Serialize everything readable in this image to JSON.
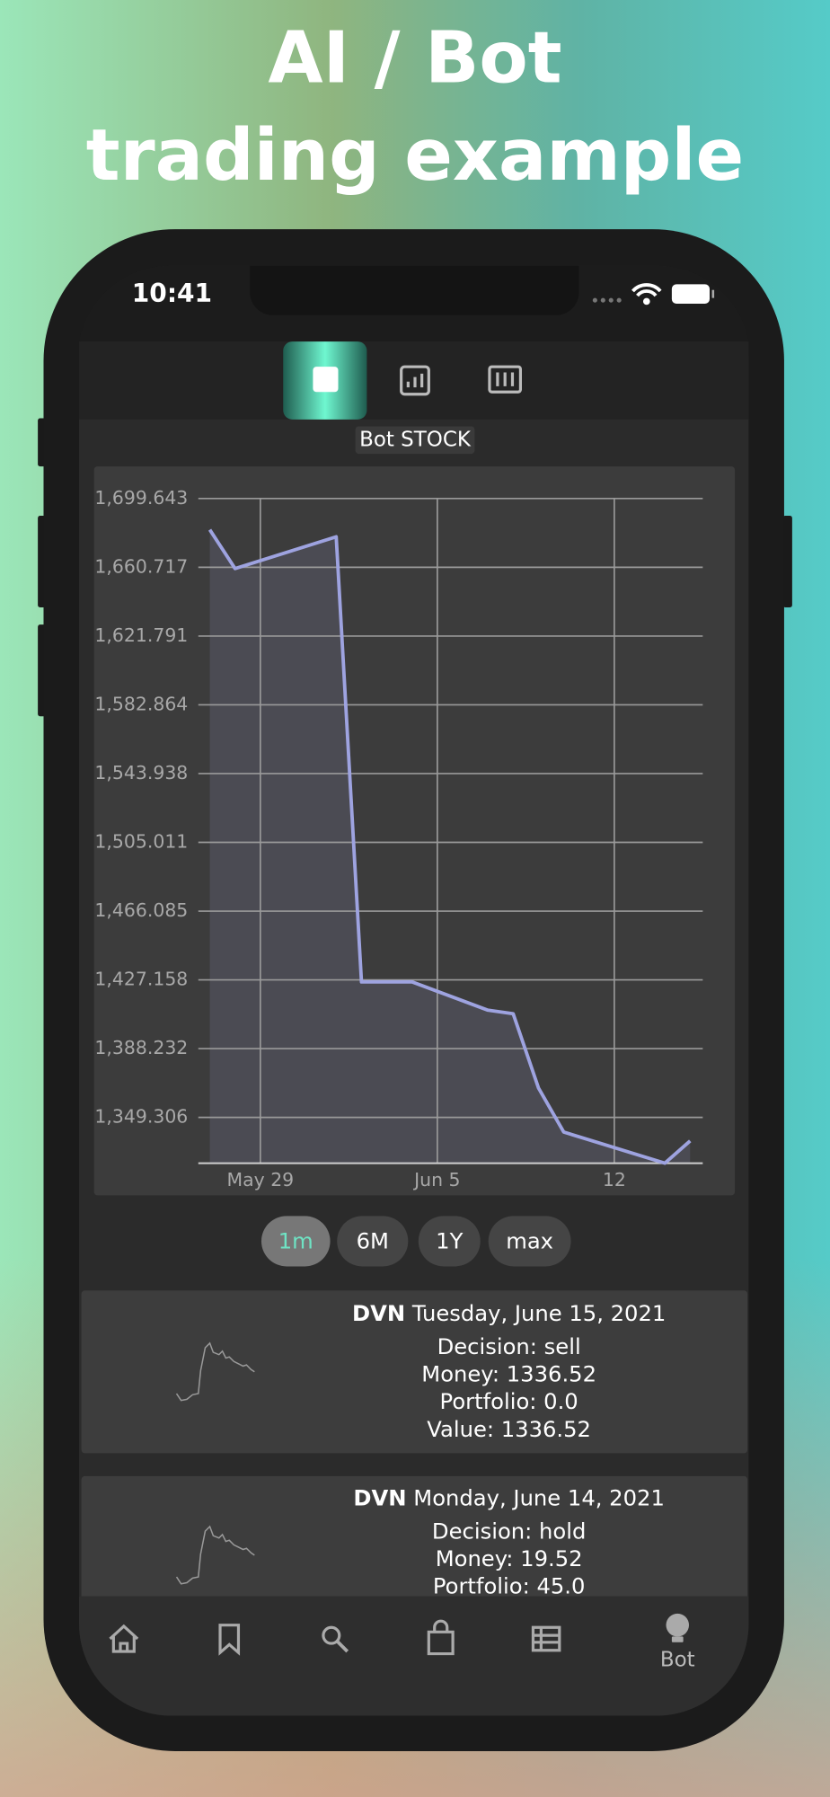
{
  "header": {
    "title_line1": "AI / Bot",
    "title_line2": "trading example"
  },
  "status_bar": {
    "time": "10:41"
  },
  "chart_data": {
    "type": "line",
    "title": "Bot STOCK",
    "x": [
      "May 27",
      "May 28",
      "Jun 1",
      "Jun 2",
      "Jun 4",
      "Jun 7",
      "Jun 8",
      "Jun 9",
      "Jun 10",
      "Jun 14",
      "Jun 15"
    ],
    "values": [
      1682,
      1660,
      1678,
      1426,
      1426,
      1410,
      1408,
      1366,
      1341,
      1323.4,
      1336
    ],
    "color": "#9ea3e0",
    "xlim": [
      "May 27",
      "Jun 15"
    ],
    "xticks": [
      {
        "value": "May 29",
        "label": "May 29"
      },
      {
        "value": "Jun 5",
        "label": "Jun 5"
      },
      {
        "value": "Jun 12",
        "label": "12"
      }
    ],
    "ylim": [
      1323.35,
      1699.643
    ],
    "yticks": [
      {
        "value": 1699.643,
        "label": "1,699.643"
      },
      {
        "value": 1660.717,
        "label": "1,660.717"
      },
      {
        "value": 1621.791,
        "label": "1,621.791"
      },
      {
        "value": 1582.864,
        "label": "1,582.864"
      },
      {
        "value": 1543.938,
        "label": "1,543.938"
      },
      {
        "value": 1505.011,
        "label": "1,505.011"
      },
      {
        "value": 1466.085,
        "label": "1,466.085"
      },
      {
        "value": 1427.158,
        "label": "1,427.158"
      },
      {
        "value": 1388.232,
        "label": "1,388.232"
      },
      {
        "value": 1349.306,
        "label": "1,349.306"
      }
    ],
    "grid": true
  },
  "range_buttons": [
    "1m",
    "6M",
    "1Y",
    "max"
  ],
  "cards": [
    {
      "ticker": "DVN",
      "date": "Tuesday, June 15, 2021",
      "decision": "Decision: sell",
      "money": "Money: 1336.52",
      "portfolio": "Portfolio: 0.0",
      "value": "Value: 1336.52"
    },
    {
      "ticker": "DVN",
      "date": "Monday, June 14, 2021",
      "decision": "Decision: hold",
      "money": "Money: 19.52",
      "portfolio": "Portfolio: 45.0"
    }
  ],
  "nav": {
    "active_label": "Bot"
  }
}
